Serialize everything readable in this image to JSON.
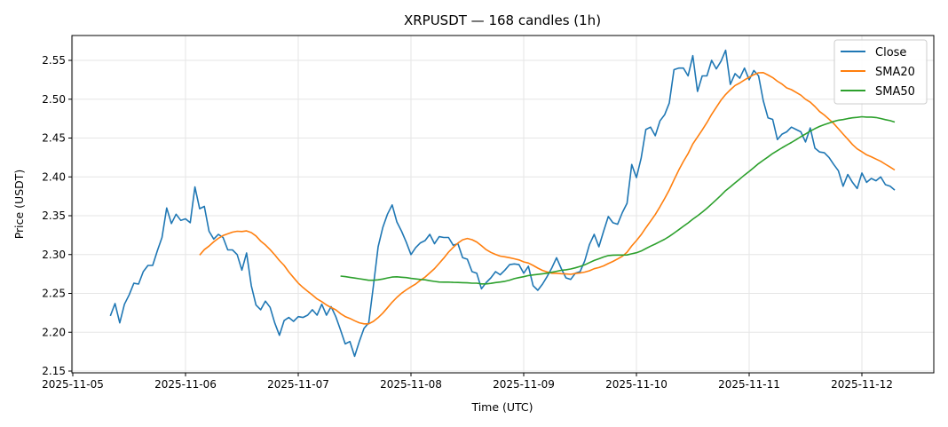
{
  "chart_data": {
    "type": "line",
    "title": "XRPUSDT — 168 candles (1h)",
    "xlabel": "Time (UTC)",
    "ylabel": "Price (USDT)",
    "x_start": "2025-11-05T08:00",
    "x_step_hours": 1,
    "xlim_days_from_2025-11-05": [
      -0.02,
      7.63
    ],
    "ylim": [
      2.147,
      2.585
    ],
    "x_ticks": [
      "2025-11-05",
      "2025-11-06",
      "2025-11-07",
      "2025-11-08",
      "2025-11-09",
      "2025-11-10",
      "2025-11-11",
      "2025-11-12"
    ],
    "y_ticks": [
      "2.15",
      "2.20",
      "2.25",
      "2.30",
      "2.35",
      "2.40",
      "2.45",
      "2.50",
      "2.55"
    ],
    "grid": true,
    "legend_position": "top-right",
    "series": [
      {
        "name": "Close",
        "color": "#1f77b4",
        "kind": "raw"
      },
      {
        "name": "SMA20",
        "color": "#ff7f0e",
        "kind": "sma",
        "window": 20
      },
      {
        "name": "SMA50",
        "color": "#2ca02c",
        "kind": "sma",
        "window": 50
      }
    ],
    "close": [
      2.221,
      2.237,
      2.212,
      2.236,
      2.248,
      2.263,
      2.262,
      2.278,
      2.286,
      2.286,
      2.305,
      2.322,
      2.36,
      2.34,
      2.352,
      2.344,
      2.346,
      2.341,
      2.387,
      2.359,
      2.362,
      2.33,
      2.32,
      2.326,
      2.322,
      2.306,
      2.306,
      2.3,
      2.28,
      2.302,
      2.26,
      2.235,
      2.229,
      2.24,
      2.232,
      2.212,
      2.196,
      2.215,
      2.219,
      2.214,
      2.22,
      2.219,
      2.222,
      2.229,
      2.222,
      2.236,
      2.222,
      2.233,
      2.22,
      2.203,
      2.185,
      2.188,
      2.169,
      2.188,
      2.205,
      2.212,
      2.26,
      2.31,
      2.335,
      2.352,
      2.364,
      2.342,
      2.33,
      2.316,
      2.3,
      2.309,
      2.315,
      2.318,
      2.326,
      2.314,
      2.323,
      2.322,
      2.322,
      2.312,
      2.314,
      2.296,
      2.294,
      2.278,
      2.276,
      2.256,
      2.264,
      2.27,
      2.278,
      2.274,
      2.28,
      2.287,
      2.288,
      2.287,
      2.276,
      2.285,
      2.26,
      2.254,
      2.262,
      2.272,
      2.283,
      2.296,
      2.282,
      2.27,
      2.268,
      2.276,
      2.278,
      2.292,
      2.313,
      2.326,
      2.31,
      2.33,
      2.349,
      2.341,
      2.339,
      2.354,
      2.366,
      2.416,
      2.399,
      2.424,
      2.461,
      2.464,
      2.453,
      2.472,
      2.48,
      2.495,
      2.538,
      2.54,
      2.54,
      2.53,
      2.556,
      2.51,
      2.53,
      2.53,
      2.55,
      2.539,
      2.549,
      2.563,
      2.519,
      2.533,
      2.527,
      2.54,
      2.525,
      2.537,
      2.53,
      2.498,
      2.476,
      2.474,
      2.448,
      2.455,
      2.458,
      2.464,
      2.461,
      2.458,
      2.445,
      2.463,
      2.437,
      2.432,
      2.431,
      2.425,
      2.416,
      2.408,
      2.388,
      2.403,
      2.393,
      2.385,
      2.405,
      2.393,
      2.398,
      2.395,
      2.4,
      2.39,
      2.388,
      2.383
    ]
  }
}
